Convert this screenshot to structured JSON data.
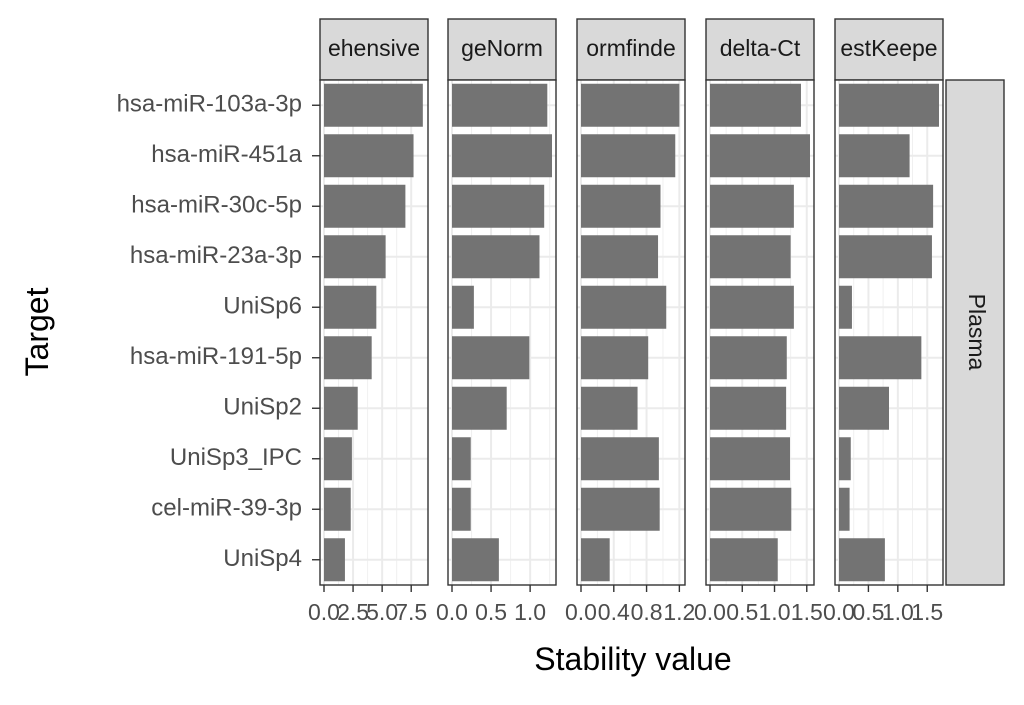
{
  "chart_data": {
    "type": "bar",
    "orientation": "horizontal",
    "xlabel": "Stability value",
    "ylabel": "Target",
    "row_strip": "Plasma",
    "categories": [
      "hsa-miR-103a-3p",
      "hsa-miR-451a",
      "hsa-miR-30c-5p",
      "hsa-miR-23a-3p",
      "UniSp6",
      "hsa-miR-191-5p",
      "UniSp2",
      "UniSp3_IPC",
      "cel-miR-39-3p",
      "UniSp4"
    ],
    "grid": true,
    "facets": [
      {
        "label": "ehensive",
        "xlim": [
          0,
          8.6
        ],
        "ticks": [
          0,
          2.5,
          5,
          7.5
        ],
        "tick_labels": [
          "0.0",
          "2.5",
          "5.0",
          "7.5"
        ],
        "values": [
          8.5,
          7.7,
          7.0,
          5.3,
          4.5,
          4.1,
          2.9,
          2.4,
          2.3,
          1.8
        ]
      },
      {
        "label": "geNorm",
        "xlim": [
          0,
          1.28
        ],
        "ticks": [
          0,
          0.5,
          1.0
        ],
        "tick_labels": [
          "0.0",
          "0.5",
          "1.0"
        ],
        "values": [
          1.22,
          1.28,
          1.18,
          1.12,
          0.28,
          0.99,
          0.7,
          0.24,
          0.24,
          0.6
        ]
      },
      {
        "label": "ormfinde",
        "xlim": [
          0,
          1.22
        ],
        "ticks": [
          0,
          0.4,
          0.8,
          1.2
        ],
        "tick_labels": [
          "0.0",
          "0.4",
          "0.8",
          "1.2"
        ],
        "values": [
          1.2,
          1.15,
          0.97,
          0.94,
          1.04,
          0.82,
          0.69,
          0.95,
          0.96,
          0.35
        ]
      },
      {
        "label": "delta-Ct",
        "xlim": [
          0,
          1.55
        ],
        "ticks": [
          0,
          0.5,
          1.0,
          1.5
        ],
        "tick_labels": [
          "0.0",
          "0.5",
          "1.0",
          "1.5"
        ],
        "values": [
          1.41,
          1.55,
          1.3,
          1.25,
          1.3,
          1.19,
          1.18,
          1.24,
          1.26,
          1.05
        ]
      },
      {
        "label": "estKeepe",
        "xlim": [
          0,
          1.7
        ],
        "ticks": [
          0,
          0.5,
          1.0,
          1.5
        ],
        "tick_labels": [
          "0.0",
          "0.5",
          "1.0",
          "1.5"
        ],
        "values": [
          1.7,
          1.2,
          1.6,
          1.58,
          0.22,
          1.4,
          0.85,
          0.2,
          0.18,
          0.78
        ]
      }
    ]
  }
}
